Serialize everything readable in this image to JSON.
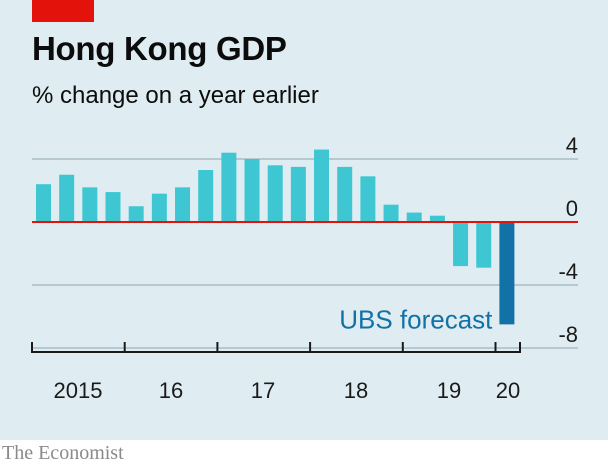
{
  "chart_data": {
    "type": "bar",
    "title": "Hong Kong GDP",
    "subtitle": "% change on a year earlier",
    "xlabel": "",
    "ylabel": "",
    "categories": [
      "2015 Q1",
      "2015 Q2",
      "2015 Q3",
      "2015 Q4",
      "2016 Q1",
      "2016 Q2",
      "2016 Q3",
      "2016 Q4",
      "2017 Q1",
      "2017 Q2",
      "2017 Q3",
      "2017 Q4",
      "2018 Q1",
      "2018 Q2",
      "2018 Q3",
      "2018 Q4",
      "2019 Q1",
      "2019 Q2",
      "2019 Q3",
      "2019 Q4",
      "2020 Q1"
    ],
    "x_tick_labels": [
      "2015",
      "16",
      "17",
      "18",
      "19",
      "20"
    ],
    "y_ticks": [
      4,
      0,
      -4,
      -8
    ],
    "y_tick_labels": [
      "4",
      "0",
      "-4",
      "-8"
    ],
    "ylim": [
      -8,
      5
    ],
    "series": [
      {
        "values": [
          2.4,
          3.0,
          2.2,
          1.9,
          1.0,
          1.8,
          2.2,
          3.3,
          4.4,
          4.0,
          3.6,
          3.5,
          4.6,
          3.5,
          2.9,
          1.1,
          0.6,
          0.4,
          -2.8,
          -2.9,
          -6.5
        ],
        "color": "#3ec7d3"
      }
    ],
    "highlight": {
      "index": 20,
      "color": "#1271a7",
      "label": "UBS forecast"
    },
    "zero_line_color": "#e3120b",
    "grid": true
  },
  "source": "The Economist"
}
